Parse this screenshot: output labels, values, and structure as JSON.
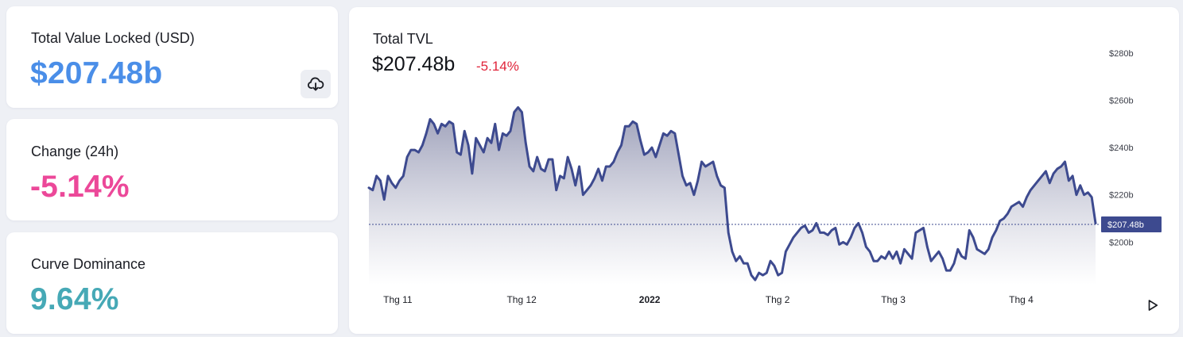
{
  "stats": {
    "tvl": {
      "label": "Total Value Locked (USD)",
      "value": "$207.48b",
      "color": "#4a8ee8"
    },
    "change": {
      "label": "Change (24h)",
      "value": "-5.14%",
      "color": "#ec4899"
    },
    "dominance": {
      "label": "Curve Dominance",
      "value": "9.64%",
      "color": "#46a9b6"
    },
    "download_icon": "cloud-download-icon"
  },
  "chart": {
    "title": "Total TVL",
    "value": "$207.48b",
    "change": "-5.14%",
    "current_label": "$207.48b",
    "play_icon": "play-icon",
    "line_color": "#3d4a8f",
    "change_color": "#e0243a"
  },
  "chart_data": {
    "type": "area",
    "title": "Total TVL",
    "x_start": "2021-10-25",
    "x_end": "2022-04-19",
    "yticks": [
      200,
      220,
      240,
      260,
      280
    ],
    "ytick_labels": [
      "$200b",
      "$220b",
      "$240b",
      "$260b",
      "$280b"
    ],
    "ylim": [
      182,
      286
    ],
    "x_ticks": [
      {
        "label": "Thg 11",
        "date": "2021-11-01",
        "bold": false
      },
      {
        "label": "Thg 12",
        "date": "2021-12-01",
        "bold": false
      },
      {
        "label": "2022",
        "date": "2022-01-01",
        "bold": true
      },
      {
        "label": "Thg 2",
        "date": "2022-02-01",
        "bold": false
      },
      {
        "label": "Thg 3",
        "date": "2022-03-01",
        "bold": false
      },
      {
        "label": "Thg 4",
        "date": "2022-04-01",
        "bold": false
      }
    ],
    "reference_value": 207.48,
    "values": [
      223,
      222,
      228,
      226,
      218,
      228,
      225,
      223,
      226,
      228,
      236,
      239,
      239,
      238,
      241,
      246,
      252,
      250,
      246,
      250,
      249,
      251,
      250,
      238,
      237,
      247,
      241,
      229,
      244,
      241,
      238,
      244,
      242,
      250,
      239,
      246,
      245,
      247,
      255,
      257,
      255,
      242,
      232,
      230,
      236,
      231,
      230,
      235,
      235,
      222,
      228,
      227,
      236,
      231,
      224,
      232,
      220,
      222,
      224,
      227,
      231,
      226,
      232,
      232,
      234,
      238,
      241,
      249,
      249,
      251,
      250,
      243,
      237,
      238,
      240,
      236,
      241,
      246,
      245,
      247,
      246,
      237,
      228,
      224,
      225,
      220,
      226,
      234,
      232,
      233,
      234,
      228,
      224,
      223,
      204,
      196,
      192,
      194,
      191,
      191,
      186,
      184,
      187,
      186,
      187,
      192,
      190,
      186,
      187,
      196,
      199,
      202,
      204,
      206,
      207,
      204,
      205,
      208,
      204,
      204,
      203,
      205,
      206,
      199,
      200,
      199,
      202,
      206,
      208,
      204,
      198,
      196,
      192,
      192,
      194,
      193,
      196,
      193,
      196,
      191,
      197,
      195,
      193,
      204,
      205,
      206,
      198,
      192,
      194,
      196,
      193,
      188,
      188,
      191,
      197,
      194,
      193,
      205,
      202,
      197,
      196,
      195,
      197,
      202,
      205,
      209,
      210,
      212,
      215,
      216,
      217,
      215,
      219,
      222,
      224,
      226,
      228,
      230,
      225,
      229,
      231,
      232,
      234,
      226,
      228,
      220,
      224,
      220,
      221,
      219,
      208
    ]
  }
}
